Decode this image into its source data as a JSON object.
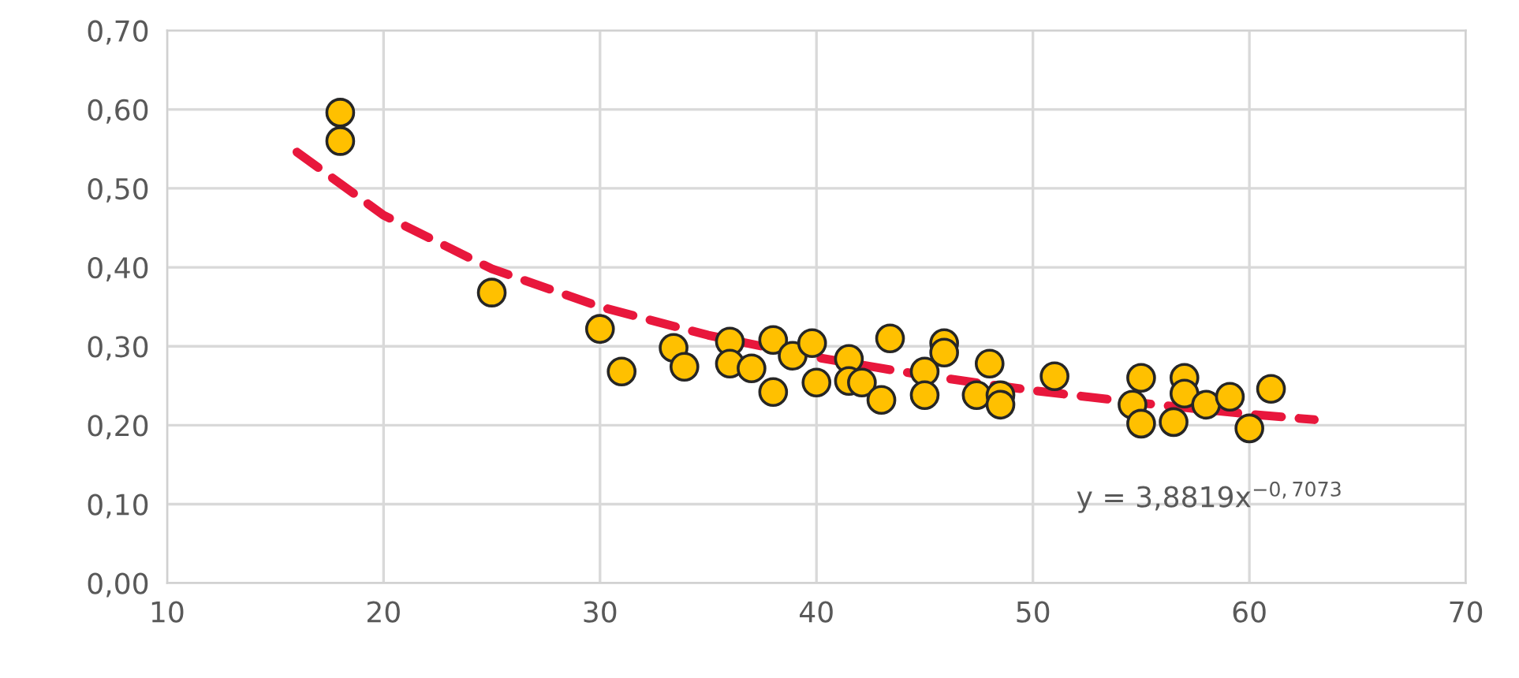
{
  "chart_data": {
    "type": "scatter",
    "xlim": [
      10,
      70
    ],
    "xticks": [
      10,
      20,
      30,
      40,
      50,
      60,
      70
    ],
    "ylim": [
      0,
      0.7
    ],
    "yticks": [
      {
        "value": 0,
        "label": "0,00"
      },
      {
        "value": 0.1,
        "label": "0,10"
      },
      {
        "value": 0.2,
        "label": "0,20"
      },
      {
        "value": 0.3,
        "label": "0,30"
      },
      {
        "value": 0.4,
        "label": "0,40"
      },
      {
        "value": 0.5,
        "label": "0,50"
      },
      {
        "value": 0.6,
        "label": "0,60"
      },
      {
        "value": 0.7,
        "label": "0,70"
      }
    ],
    "grid": true,
    "series": [
      {
        "marker": "circle",
        "color": "#ffc000",
        "x": [
          18.0,
          18.0,
          25.0,
          30.0,
          31.0,
          33.4,
          33.9,
          36.0,
          36.0,
          37.0,
          38.0,
          38.0,
          38.9,
          39.8,
          40.0,
          41.5,
          41.5,
          42.1,
          43.0,
          43.4,
          45.0,
          45.0,
          45.9,
          45.9,
          47.4,
          48.0,
          48.5,
          48.5,
          51.0,
          54.6,
          55.0,
          55.0,
          56.5,
          57.0,
          57.0,
          58.0,
          59.1,
          60.0,
          61.0
        ],
        "values": [
          0.596,
          0.56,
          0.368,
          0.322,
          0.268,
          0.298,
          0.274,
          0.306,
          0.278,
          0.272,
          0.308,
          0.242,
          0.288,
          0.304,
          0.254,
          0.284,
          0.256,
          0.254,
          0.232,
          0.31,
          0.268,
          0.238,
          0.304,
          0.292,
          0.238,
          0.278,
          0.238,
          0.226,
          0.262,
          0.226,
          0.26,
          0.202,
          0.204,
          0.26,
          0.24,
          0.226,
          0.236,
          0.196,
          0.246
        ]
      },
      {
        "type": "line",
        "color": "#e8173c",
        "line_style": "dashed",
        "x": [
          16,
          20,
          25,
          30,
          35,
          40,
          45,
          50,
          55,
          60,
          63
        ],
        "values": [
          0.546,
          0.466,
          0.398,
          0.35,
          0.314,
          0.286,
          0.263,
          0.244,
          0.228,
          0.214,
          0.207
        ]
      }
    ],
    "annotations": [
      "y = 3,8819x$^{−0,7073}$"
    ]
  }
}
